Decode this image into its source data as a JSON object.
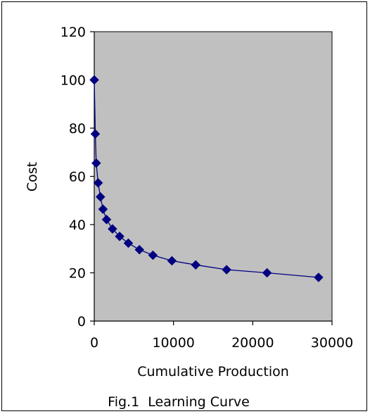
{
  "chart_data": {
    "type": "line",
    "title": "",
    "caption": "Fig.1  Learning Curve",
    "xlabel": "Cumulative Production",
    "ylabel": "Cost",
    "xlim": [
      0,
      30000
    ],
    "ylim": [
      0,
      120
    ],
    "x_ticks": [
      0,
      10000,
      20000,
      30000
    ],
    "y_ticks": [
      0,
      20,
      40,
      60,
      80,
      100,
      120
    ],
    "x_tick_labels": [
      "0",
      "10000",
      "20000",
      "30000"
    ],
    "y_tick_labels": [
      "0",
      "20",
      "40",
      "60",
      "80",
      "100",
      "120"
    ],
    "grid": false,
    "legend": "none",
    "plot_background": "#c0c0c0",
    "series": [
      {
        "marker": "diamond",
        "color": "#000080",
        "x": [
          1,
          130,
          250,
          490,
          780,
          1100,
          1550,
          2300,
          3200,
          4300,
          5700,
          7400,
          9800,
          12800,
          16700,
          21800,
          28300
        ],
        "y": [
          100,
          77.6,
          65.5,
          57.3,
          51.5,
          46.4,
          42.1,
          38.2,
          35.1,
          32.3,
          29.6,
          27.3,
          25.0,
          23.3,
          21.3,
          20.0,
          18.1
        ]
      }
    ]
  }
}
